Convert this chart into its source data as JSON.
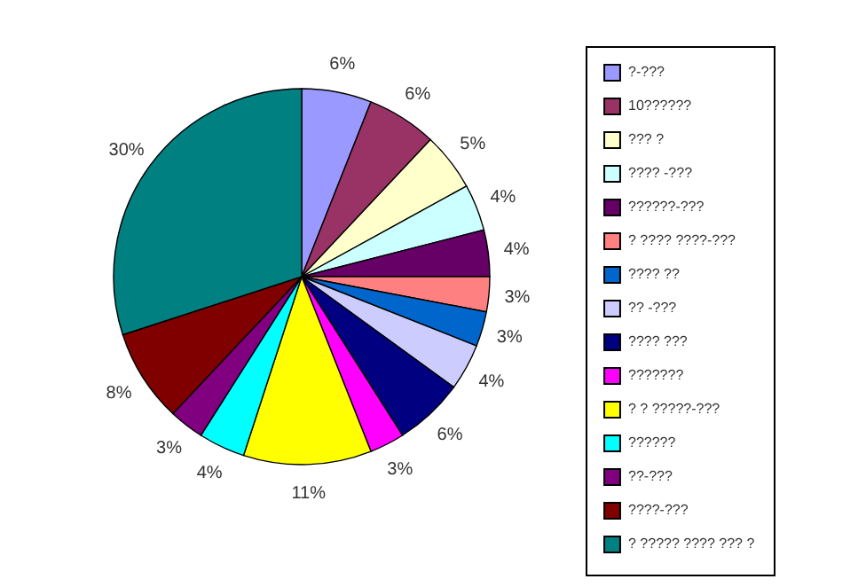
{
  "chart_data": {
    "type": "pie",
    "categories": [
      "?-???",
      "10??????",
      "??? ?",
      "???? -???",
      "??????-???",
      "? ???? ????-???",
      "???? ??",
      "?? -???",
      "???? ???",
      "???????",
      "? ? ?????-???",
      "??????",
      "??-???",
      "????-???",
      "? ????? ???? ??? ?"
    ],
    "values": [
      6,
      6,
      5,
      4,
      4,
      3,
      3,
      4,
      6,
      3,
      11,
      4,
      3,
      8,
      30
    ],
    "colors": [
      "#9999ff",
      "#993366",
      "#ffffcc",
      "#ccffff",
      "#660066",
      "#ff8080",
      "#0066cc",
      "#ccccff",
      "#000080",
      "#ff00ff",
      "#ffff00",
      "#00ffff",
      "#800080",
      "#800000",
      "#008080"
    ],
    "value_labels": [
      "6%",
      "6%",
      "5%",
      "4%",
      "4%",
      "3%",
      "3%",
      "4%",
      "6%",
      "3%",
      "11%",
      "4%",
      "3%",
      "8%",
      "30%"
    ],
    "legend": "right"
  }
}
